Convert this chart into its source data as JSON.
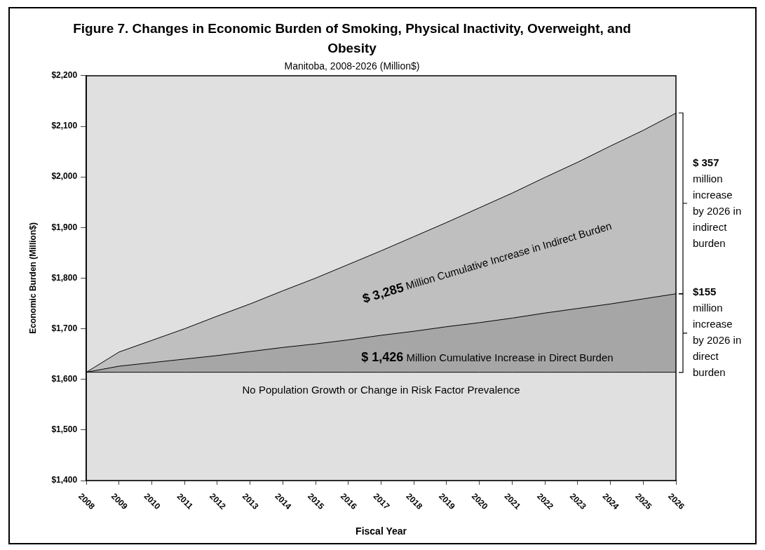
{
  "chart_data": {
    "type": "area",
    "title": "Figure 7. Changes in Economic Burden of Smoking, Physical Inactivity, Overweight, and Obesity",
    "subtitle": "Manitoba, 2008-2026 (Million$)",
    "xlabel": "Fiscal Year",
    "ylabel": "Economic Burden (Million$)",
    "categories": [
      "2008",
      "2009",
      "2010",
      "2011",
      "2012",
      "2013",
      "2014",
      "2015",
      "2016",
      "2017",
      "2018",
      "2019",
      "2020",
      "2021",
      "2022",
      "2023",
      "2024",
      "2025",
      "2026"
    ],
    "series": [
      {
        "name": "No Population Growth or Change in Risk Factor Prevalence",
        "color": "#e0e0e0",
        "values": [
          1614,
          1614,
          1614,
          1614,
          1614,
          1614,
          1614,
          1614,
          1614,
          1614,
          1614,
          1614,
          1614,
          1614,
          1614,
          1614,
          1614,
          1614,
          1614
        ]
      },
      {
        "name": "$ 1,426 Million Cumulative Increase in Direct Burden",
        "color": "#a6a6a6",
        "values": [
          1614,
          1626,
          1633,
          1640,
          1647,
          1655,
          1663,
          1670,
          1678,
          1687,
          1695,
          1704,
          1712,
          1721,
          1731,
          1740,
          1749,
          1759,
          1769
        ]
      },
      {
        "name": "$ 3,285 Million Cumulative Increase in Indirect Burden",
        "color": "#bfbfbf",
        "values": [
          1614,
          1654,
          1677,
          1700,
          1725,
          1749,
          1775,
          1800,
          1827,
          1854,
          1882,
          1910,
          1939,
          1968,
          1999,
          2029,
          2061,
          2092,
          2126
        ]
      }
    ],
    "ylim": [
      1400,
      2200
    ],
    "yticks": [
      {
        "value": 1400,
        "label": "$1,400"
      },
      {
        "value": 1500,
        "label": "$1,500"
      },
      {
        "value": 1600,
        "label": "$1,600"
      },
      {
        "value": 1700,
        "label": "$1,700"
      },
      {
        "value": 1800,
        "label": "$1,800"
      },
      {
        "value": 1900,
        "label": "$1,900"
      },
      {
        "value": 2000,
        "label": "$2,000"
      },
      {
        "value": 2100,
        "label": "$2,100"
      },
      {
        "value": 2200,
        "label": "$2,200"
      }
    ],
    "annotations": [
      "$ 357 million increase by 2026 in indirect burden",
      "$155 million increase by 2026 in direct burden"
    ]
  }
}
